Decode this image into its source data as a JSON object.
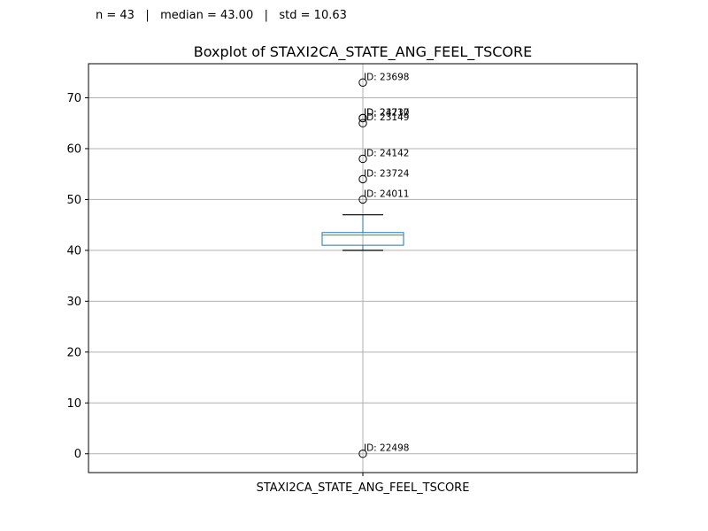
{
  "stats_line": "n = 43   |   median = 43.00   |   std = 10.63",
  "chart_data": {
    "type": "box",
    "title": "Boxplot of STAXI2CA_STATE_ANG_FEEL_TSCORE",
    "categories": [
      "STAXI2CA_STATE_ANG_FEEL_TSCORE"
    ],
    "ylim": [
      -3.7,
      76.7
    ],
    "yticks": [
      0,
      10,
      20,
      30,
      40,
      50,
      60,
      70
    ],
    "grid": true,
    "box": {
      "q1": 41,
      "median": 43,
      "q3": 43.5,
      "whisker_low": 40,
      "whisker_high": 47
    },
    "outliers": [
      {
        "value": 73,
        "label": "ID: 23698"
      },
      {
        "value": 66,
        "label": "ID: 24237"
      },
      {
        "value": 66,
        "label": "ID: 23710"
      },
      {
        "value": 65,
        "label": "ID: 23149"
      },
      {
        "value": 58,
        "label": "ID: 24142"
      },
      {
        "value": 54,
        "label": "ID: 23724"
      },
      {
        "value": 50,
        "label": "ID: 24011"
      },
      {
        "value": 0,
        "label": "ID: 22498"
      }
    ],
    "colors": {
      "box": "#1f77b4",
      "median": "#2ca02c",
      "whisker": "#000000",
      "grid": "#b0b0b0"
    }
  }
}
